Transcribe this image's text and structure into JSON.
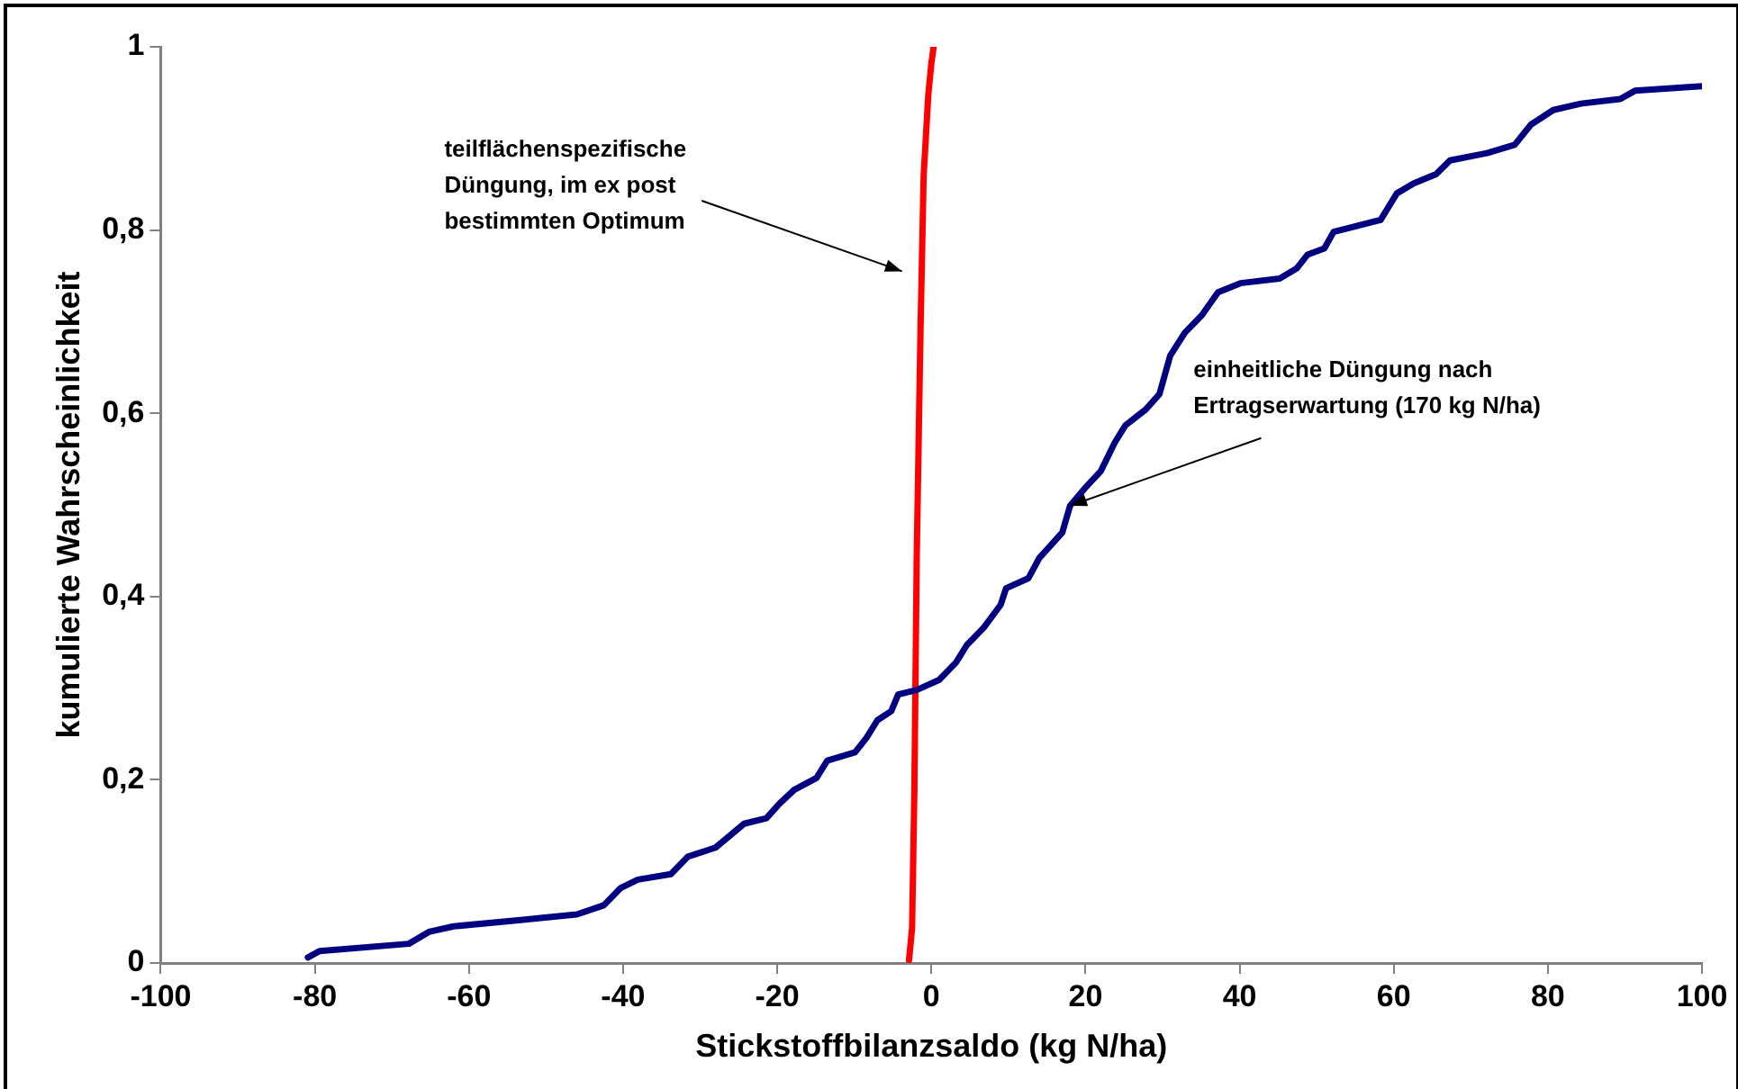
{
  "chart_data": {
    "type": "line",
    "xlabel": "Stickstoffbilanzsaldo (kg N/ha)",
    "ylabel": "kumulierte Wahrscheinlichkeit",
    "xlim": [
      -100,
      100
    ],
    "xticks": [
      -100,
      -80,
      -60,
      -40,
      -20,
      0,
      20,
      40,
      60,
      80,
      100
    ],
    "ylim": [
      0,
      1
    ],
    "yticks": [
      {
        "value": 0,
        "label": "0"
      },
      {
        "value": 0.2,
        "label": "0,2"
      },
      {
        "value": 0.4,
        "label": "0,4"
      },
      {
        "value": 0.6,
        "label": "0,6"
      },
      {
        "value": 0.8,
        "label": "0,8"
      },
      {
        "value": 1,
        "label": "1"
      }
    ],
    "marker": "none",
    "line_style": "solid",
    "legend": false,
    "series": [
      {
        "color": "#000080",
        "x": [
          -80.9,
          -79.4,
          -67.8,
          -65.2,
          -62,
          -53.3,
          -46,
          -42.5,
          -40.3,
          -38.1,
          -33.8,
          -31.6,
          -28,
          -24.3,
          -21.4,
          -19.7,
          -17.8,
          -14.9,
          -13.5,
          -9.9,
          -8.4,
          -7,
          -5.2,
          -4.3,
          -1.9,
          1,
          3.2,
          4.6,
          6.8,
          9,
          9.7,
          12.6,
          14,
          17,
          18,
          19.9,
          22,
          23.8,
          25.2,
          27.8,
          29.6,
          31,
          32.9,
          35.1,
          37.2,
          40.1,
          45.2,
          47.4,
          48.8,
          51,
          52.2,
          58.3,
          60.4,
          62.6,
          65.5,
          67.3,
          72.1,
          75.7,
          77.8,
          80.7,
          84.3,
          89.4,
          91.3,
          100
        ],
        "values": [
          0.006,
          0.013,
          0.021,
          0.034,
          0.04,
          0.047,
          0.053,
          0.063,
          0.082,
          0.091,
          0.097,
          0.116,
          0.126,
          0.152,
          0.158,
          0.174,
          0.189,
          0.202,
          0.221,
          0.23,
          0.246,
          0.265,
          0.275,
          0.293,
          0.298,
          0.309,
          0.328,
          0.347,
          0.366,
          0.391,
          0.409,
          0.42,
          0.442,
          0.47,
          0.499,
          0.518,
          0.537,
          0.568,
          0.587,
          0.604,
          0.621,
          0.663,
          0.688,
          0.707,
          0.732,
          0.742,
          0.747,
          0.758,
          0.773,
          0.78,
          0.798,
          0.811,
          0.84,
          0.851,
          0.861,
          0.876,
          0.884,
          0.893,
          0.915,
          0.931,
          0.938,
          0.943,
          0.952,
          0.957
        ]
      },
      {
        "color": "#ff0000",
        "x": [
          -2.9,
          -2.5,
          -2.2,
          -1.9,
          -1.4,
          -1,
          -0.4,
          0,
          0.3
        ],
        "values": [
          0.003,
          0.038,
          0.189,
          0.442,
          0.694,
          0.859,
          0.947,
          0.982,
          1
        ]
      }
    ],
    "annotations": [
      "teilflächenspezifische\nDüngung, im ex post\nbestimmten Optimum",
      {
        "text": "einheitliche Düngung nach\nErtragserwartung (170 kg N/ha)",
        "x": 18,
        "y": 0.499
      }
    ]
  }
}
